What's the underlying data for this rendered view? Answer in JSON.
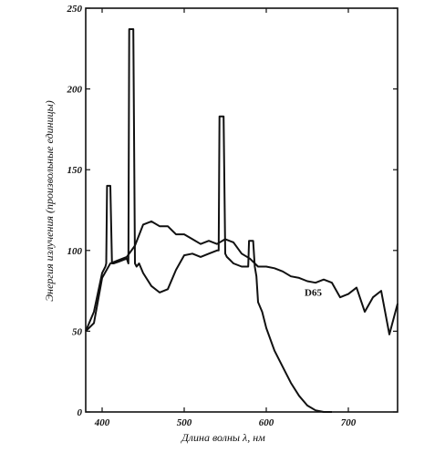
{
  "chart_data": {
    "type": "line",
    "xlabel": "Длина волны λ, нм",
    "ylabel": "Энергия излучения (произвольные единицы)",
    "xlim": [
      380,
      760
    ],
    "ylim": [
      0,
      250
    ],
    "x_ticks": [
      400,
      500,
      600,
      700
    ],
    "y_ticks": [
      0,
      50,
      100,
      150,
      200,
      250
    ],
    "grid": false,
    "series": [
      {
        "name": "",
        "x": [
          380,
          390,
          400,
          404,
          405,
          406,
          408,
          410,
          412,
          414,
          420,
          430,
          432,
          433,
          434,
          436,
          438,
          440,
          442,
          445,
          450,
          460,
          470,
          480,
          490,
          500,
          510,
          520,
          530,
          540,
          542,
          543,
          544,
          546,
          548,
          550,
          552,
          556,
          560,
          570,
          575,
          578,
          579,
          580,
          582,
          584,
          586,
          588,
          590,
          595,
          600,
          610,
          620,
          630,
          640,
          650,
          660,
          670,
          680
        ],
        "values": [
          50,
          62,
          86,
          90,
          92,
          140,
          140,
          140,
          92,
          92,
          93,
          95,
          92,
          237,
          237,
          237,
          237,
          92,
          90,
          92,
          86,
          78,
          74,
          76,
          88,
          97,
          98,
          96,
          98,
          100,
          100,
          183,
          183,
          183,
          183,
          98,
          96,
          94,
          92,
          90,
          90,
          90,
          106,
          106,
          106,
          106,
          90,
          84,
          68,
          62,
          52,
          38,
          28,
          18,
          10,
          4,
          1,
          0,
          0
        ]
      },
      {
        "name": "D65",
        "x": [
          380,
          390,
          400,
          410,
          420,
          430,
          440,
          450,
          460,
          470,
          480,
          490,
          500,
          510,
          520,
          530,
          540,
          550,
          560,
          570,
          580,
          590,
          600,
          610,
          620,
          630,
          640,
          650,
          660,
          670,
          680,
          690,
          700,
          710,
          720,
          730,
          740,
          750,
          760
        ],
        "values": [
          50,
          55,
          83,
          92,
          94,
          96,
          103,
          116,
          118,
          115,
          115,
          110,
          110,
          107,
          104,
          106,
          104,
          107,
          105,
          98,
          95,
          90,
          90,
          89,
          87,
          84,
          83,
          81,
          80,
          82,
          80,
          71,
          73,
          77,
          62,
          71,
          75,
          48,
          67
        ]
      }
    ]
  }
}
